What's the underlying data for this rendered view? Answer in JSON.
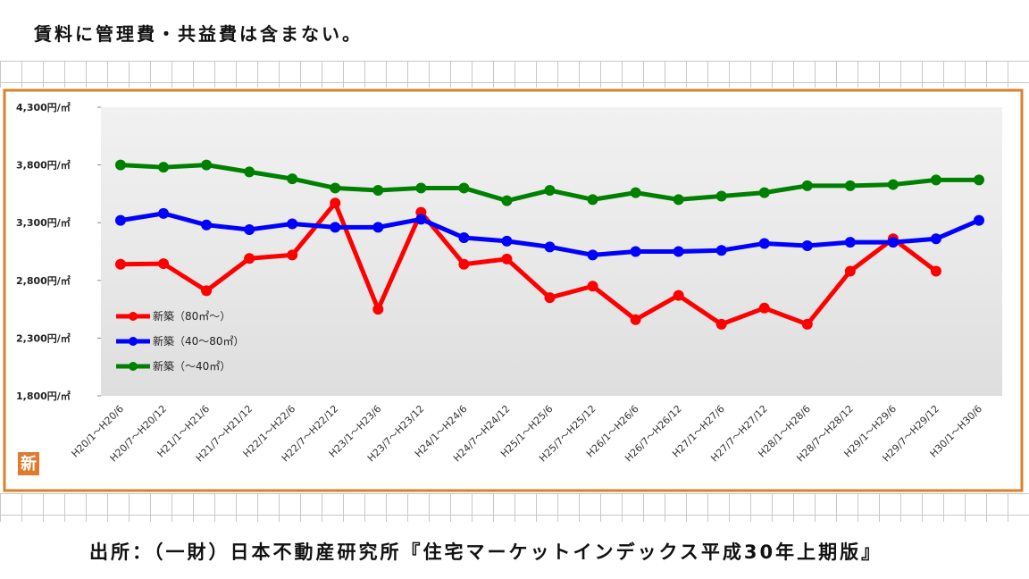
{
  "header": "賃料に管理費・共益費は含まない。",
  "source": "出所：（一財）日本不動産研究所『住宅マーケットインデックス平成30年上期版』",
  "badge": "新",
  "chart_data": {
    "type": "line",
    "categories": [
      "H20/1～H20/6",
      "H20/7～H20/12",
      "H21/1～H21/6",
      "H21/7～H21/12",
      "H22/1～H22/6",
      "H22/7～H22/12",
      "H23/1～H23/6",
      "H23/7～H23/12",
      "H24/1～H24/6",
      "H24/7～H24/12",
      "H25/1～H25/6",
      "H25/7～H25/12",
      "H26/1～H26/6",
      "H26/7～H26/12",
      "H27/1～H27/6",
      "H27/7～H27/12",
      "H28/1～H28/6",
      "H28/7～H28/12",
      "H29/1～H29/6",
      "H29/7～H29/12",
      "H30/1～H30/6"
    ],
    "series": [
      {
        "name": "新築（80㎡～）",
        "color": "#ff0000",
        "values": [
          2940,
          2945,
          2710,
          2990,
          3020,
          3470,
          2550,
          3390,
          2940,
          2985,
          2650,
          2750,
          2460,
          2670,
          2420,
          2560,
          2420,
          2880,
          3160,
          2880,
          null
        ]
      },
      {
        "name": "新築（40～80㎡）",
        "color": "#0000ff",
        "values": [
          3320,
          3380,
          3280,
          3240,
          3290,
          3260,
          3260,
          3330,
          3170,
          3140,
          3090,
          3020,
          3050,
          3050,
          3060,
          3120,
          3100,
          3130,
          3130,
          3160,
          3320
        ]
      },
      {
        "name": "新築（～40㎡）",
        "color": "#008000",
        "values": [
          3800,
          3780,
          3800,
          3740,
          3680,
          3600,
          3580,
          3600,
          3600,
          3490,
          3580,
          3500,
          3560,
          3500,
          3530,
          3560,
          3620,
          3620,
          3630,
          3670,
          3670
        ]
      }
    ],
    "ylim": [
      1800,
      4300
    ],
    "yticks": [
      {
        "value": 1800,
        "label": "1,800円/㎡"
      },
      {
        "value": 2300,
        "label": "2,300円/㎡"
      },
      {
        "value": 2800,
        "label": "2,800円/㎡"
      },
      {
        "value": 3300,
        "label": "3,300円/㎡"
      },
      {
        "value": 3800,
        "label": "3,800円/㎡"
      },
      {
        "value": 4300,
        "label": "4,300円/㎡"
      }
    ],
    "legend": "left"
  }
}
